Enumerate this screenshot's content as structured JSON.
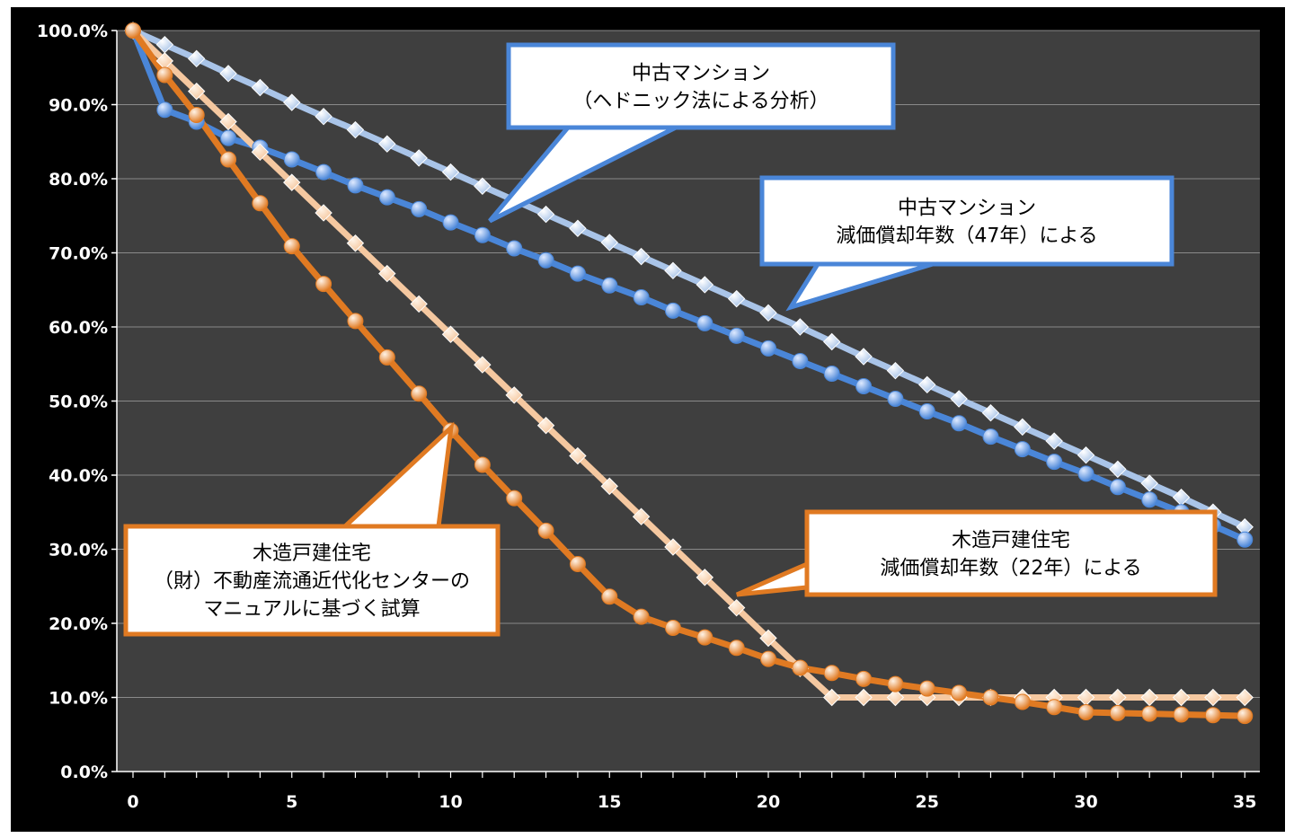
{
  "chart_data": {
    "type": "line",
    "title": "",
    "xlabel": "",
    "ylabel": "",
    "xlim": [
      0,
      35
    ],
    "ylim": [
      0,
      100
    ],
    "x_ticks": [
      "0",
      "5",
      "10",
      "15",
      "20",
      "25",
      "30",
      "35"
    ],
    "y_ticks": [
      "0.0%",
      "10.0%",
      "20.0%",
      "30.0%",
      "40.0%",
      "50.0%",
      "60.0%",
      "70.0%",
      "80.0%",
      "90.0%",
      "100.0%"
    ],
    "grid": true,
    "x": [
      0,
      1,
      2,
      3,
      4,
      5,
      6,
      7,
      8,
      9,
      10,
      11,
      12,
      13,
      14,
      15,
      16,
      17,
      18,
      19,
      20,
      21,
      22,
      23,
      24,
      25,
      26,
      27,
      28,
      29,
      30,
      31,
      32,
      33,
      34,
      35
    ],
    "series": [
      {
        "key": "mansion_47",
        "color": "#a9c4e8",
        "marker": "diamond",
        "values": [
          100,
          98.1,
          96.2,
          94.2,
          92.3,
          90.3,
          88.4,
          86.6,
          84.7,
          82.8,
          80.9,
          79.0,
          77.1,
          75.2,
          73.3,
          71.4,
          69.5,
          67.6,
          65.7,
          63.8,
          61.9,
          60.0,
          58.0,
          56.0,
          54.1,
          52.2,
          50.3,
          48.4,
          46.5,
          44.6,
          42.7,
          40.8,
          38.9,
          37.0,
          35.0,
          33.0
        ],
        "label_ref": "callouts.mansion_47"
      },
      {
        "key": "mansion_hedonic",
        "color": "#4a86d8",
        "marker": "circle",
        "values": [
          100,
          89.3,
          87.7,
          85.5,
          84.2,
          82.6,
          80.9,
          79.1,
          77.5,
          75.9,
          74.1,
          72.4,
          70.6,
          69.0,
          67.2,
          65.6,
          64.0,
          62.2,
          60.5,
          58.8,
          57.1,
          55.4,
          53.7,
          52.0,
          50.3,
          48.6,
          47.0,
          45.2,
          43.5,
          41.8,
          40.2,
          38.4,
          36.7,
          35.0,
          33.2,
          31.3
        ],
        "label_ref": "callouts.mansion_hedonic"
      },
      {
        "key": "wooden_22",
        "color": "#f5c8a0",
        "marker": "diamond",
        "values": [
          100,
          95.9,
          91.8,
          87.7,
          83.6,
          79.5,
          75.4,
          71.3,
          67.2,
          63.1,
          59.0,
          54.9,
          50.8,
          46.7,
          42.6,
          38.5,
          34.4,
          30.3,
          26.2,
          22.1,
          18.0,
          13.9,
          10.0,
          10.0,
          10.0,
          10.0,
          10.0,
          10.0,
          10.0,
          10.0,
          10.0,
          10.0,
          10.0,
          10.0,
          10.0,
          10.0
        ],
        "label_ref": "callouts.wooden_22"
      },
      {
        "key": "wooden_manual",
        "color": "#e07a22",
        "marker": "circle",
        "values": [
          100,
          94.0,
          88.6,
          82.6,
          76.7,
          70.9,
          65.8,
          60.8,
          55.9,
          51.0,
          46.0,
          41.4,
          36.9,
          32.5,
          28.0,
          23.6,
          20.9,
          19.4,
          18.1,
          16.7,
          15.2,
          14.0,
          13.3,
          12.5,
          11.8,
          11.2,
          10.6,
          10.0,
          9.4,
          8.7,
          8.0,
          7.9,
          7.8,
          7.7,
          7.6,
          7.5
        ],
        "label_ref": "callouts.wooden_manual"
      }
    ]
  },
  "callouts": {
    "mansion_hedonic": {
      "lines": [
        "中古マンション",
        "（ヘドニック法による分析）"
      ],
      "border_color": "#4a86d8"
    },
    "mansion_47": {
      "lines": [
        "中古マンション",
        "減価償却年数（47年）による"
      ],
      "border_color": "#4a86d8"
    },
    "wooden_22": {
      "lines": [
        "木造戸建住宅",
        "減価償却年数（22年）による"
      ],
      "border_color": "#e07a22"
    },
    "wooden_manual": {
      "lines": [
        "木造戸建住宅",
        "（財）不動産流通近代化センターの",
        "マニュアルに基づく試算"
      ],
      "border_color": "#e07a22"
    }
  },
  "colors": {
    "background": "#000000",
    "plot_area": "#3f3f3f",
    "gridline": "#8a8a8a",
    "axis": "#ffffff"
  }
}
